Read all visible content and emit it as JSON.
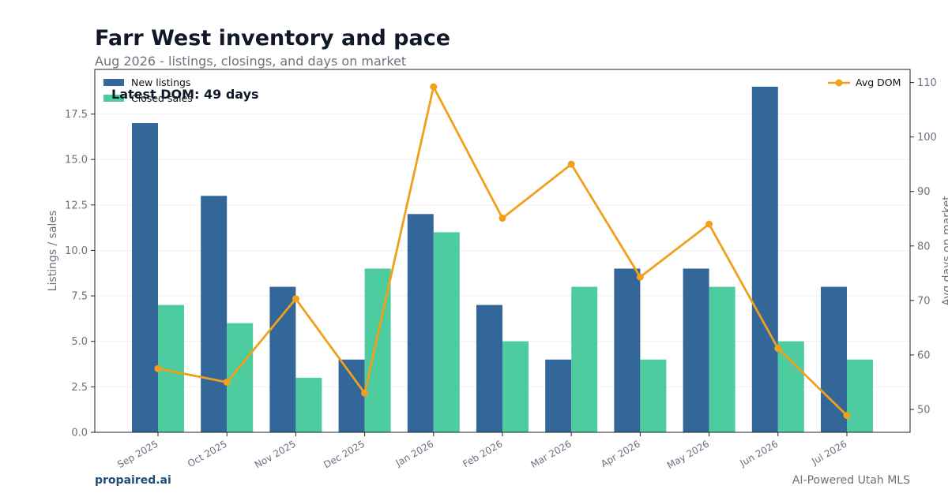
{
  "header": {
    "title": "Farr West inventory and pace",
    "subtitle": "Aug 2026 - listings, closings, and days on market"
  },
  "footer": {
    "brand": "propaired.ai",
    "tagline": "AI-Powered Utah MLS"
  },
  "colors": {
    "new_listings": "#336699",
    "closed_sales": "#4ccc9f",
    "avg_dom": "#f0a01a"
  },
  "chart_data": {
    "type": "bar",
    "categories": [
      "Sep 2025",
      "Oct 2025",
      "Nov 2025",
      "Dec 2025",
      "Jan 2026",
      "Feb 2026",
      "Mar 2026",
      "Apr 2026",
      "May 2026",
      "Jun 2026",
      "Jul 2026"
    ],
    "series": [
      {
        "name": "New listings",
        "type": "bar",
        "axis": "left",
        "values": [
          17,
          13,
          8,
          4,
          12,
          7,
          4,
          9,
          9,
          19,
          8
        ]
      },
      {
        "name": "Closed sales",
        "type": "bar",
        "axis": "left",
        "values": [
          7,
          6,
          3,
          9,
          11,
          5,
          8,
          4,
          8,
          5,
          4
        ]
      },
      {
        "name": "Avg DOM",
        "type": "line",
        "axis": "right",
        "values": [
          57.5,
          55,
          70.3,
          53,
          109.2,
          85.1,
          95,
          74.3,
          84,
          61.2,
          48.9
        ]
      }
    ],
    "title": "Farr West inventory and pace",
    "subtitle": "Aug 2026 - listings, closings, and days on market",
    "ylabel": "Listings / sales",
    "y2label": "Avg days on market",
    "ylim": [
      0,
      19.95
    ],
    "y2lim": [
      45.8,
      112.4
    ],
    "yticks": [
      "0.0",
      "2.5",
      "5.0",
      "7.5",
      "10.0",
      "12.5",
      "15.0",
      "17.5"
    ],
    "y2ticks": [
      "50",
      "60",
      "70",
      "80",
      "90",
      "100",
      "110"
    ],
    "annotation": "Latest DOM: 49 days",
    "legend_left": [
      "New listings",
      "Closed sales"
    ],
    "legend_right": [
      "Avg DOM"
    ],
    "legend_placement": "top-left and top-right",
    "grid": true
  }
}
